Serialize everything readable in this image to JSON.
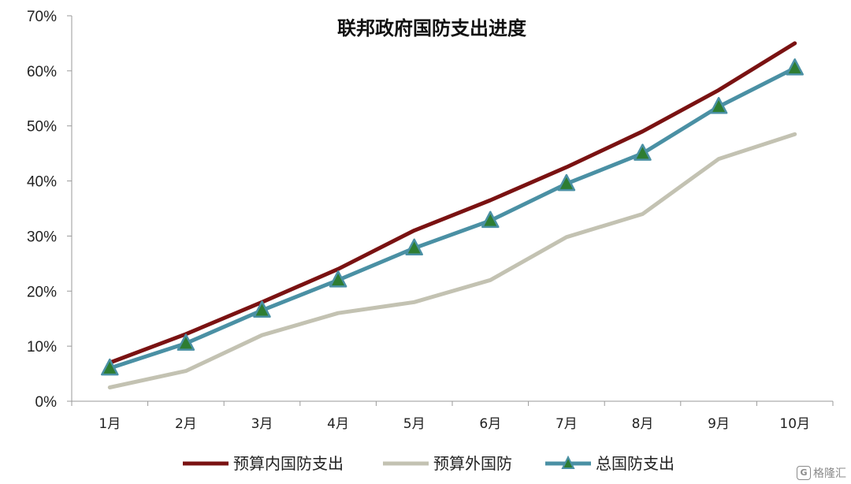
{
  "chart_data": {
    "type": "line",
    "title": "联邦政府国防支出进度",
    "categories": [
      "1月",
      "2月",
      "3月",
      "4月",
      "5月",
      "6月",
      "7月",
      "8月",
      "9月",
      "10月"
    ],
    "yticks": [
      "0%",
      "10%",
      "20%",
      "30%",
      "40%",
      "50%",
      "60%",
      "70%"
    ],
    "ylim": [
      0,
      70
    ],
    "yunit": "%",
    "grid": false,
    "legend_position": "bottom",
    "series": [
      {
        "name": "预算内国防支出",
        "color": "#7a1212",
        "marker": "none",
        "values": [
          7.0,
          12.2,
          18.0,
          24.0,
          31.0,
          36.5,
          42.5,
          49.0,
          56.5,
          65.0
        ]
      },
      {
        "name": "预算外国防",
        "color": "#c3c2b2",
        "marker": "none",
        "values": [
          2.5,
          5.5,
          12.0,
          16.0,
          18.0,
          22.0,
          29.8,
          34.0,
          44.0,
          48.5
        ]
      },
      {
        "name": "总国防支出",
        "color": "#4a90a4",
        "marker": "triangle",
        "marker_color": "#2e7d32",
        "values": [
          6.0,
          10.5,
          16.5,
          22.0,
          27.8,
          32.8,
          39.5,
          45.0,
          53.5,
          60.5
        ]
      }
    ]
  },
  "watermark": {
    "logo": "G",
    "text": "格隆汇"
  }
}
